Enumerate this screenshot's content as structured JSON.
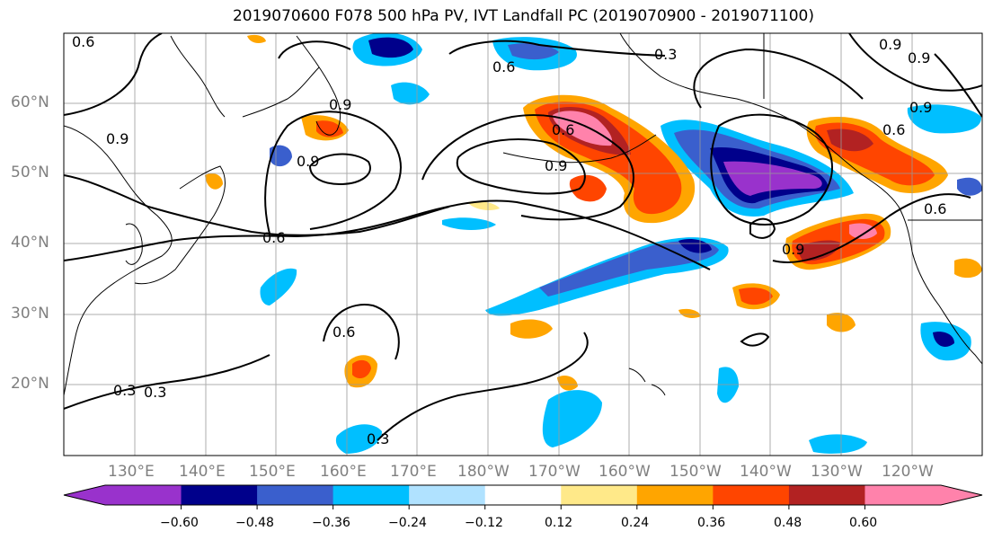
{
  "title": "2019070600 F078 500 hPa PV, IVT Landfall PC (2019070900 - 2019071100)",
  "lat_labels": [
    "60°N",
    "50°N",
    "40°N",
    "30°N",
    "20°N"
  ],
  "lon_labels": [
    "130°E",
    "140°E",
    "150°E",
    "160°E",
    "170°E",
    "180°W",
    "170°W",
    "160°W",
    "150°W",
    "140°W",
    "130°W",
    "120°W"
  ],
  "contour_labels": [
    "0.6",
    "0.3",
    "0.9",
    "0.9",
    "0.9",
    "0.6",
    "0.9",
    "0.6",
    "0.6",
    "0.9",
    "0.6",
    "0.9",
    "0.6",
    "0.6",
    "0.3",
    "0.3",
    "0.3",
    "0.9",
    "0.9"
  ],
  "colorbar": {
    "ticks": [
      "−0.60",
      "−0.48",
      "−0.36",
      "−0.24",
      "−0.12",
      "0.12",
      "0.24",
      "0.36",
      "0.48",
      "0.60"
    ],
    "colors": [
      "#9932cc",
      "#00008b",
      "#3a5fcd",
      "#00bfff",
      "#b0e2ff",
      "#ffffff",
      "#ffe989",
      "#ffa500",
      "#ff4500",
      "#b22222",
      "#ff82ab",
      "#ff82ab"
    ]
  },
  "shading_colors": {
    "purple": "#9932cc",
    "navy": "#00008b",
    "blue": "#3a5fcd",
    "cyan": "#00bfff",
    "lightblue": "#b0e2ff",
    "yellow": "#ffe989",
    "orange": "#ffa500",
    "redorange": "#ff4500",
    "darkred": "#b22222",
    "pink": "#ff82ab"
  }
}
